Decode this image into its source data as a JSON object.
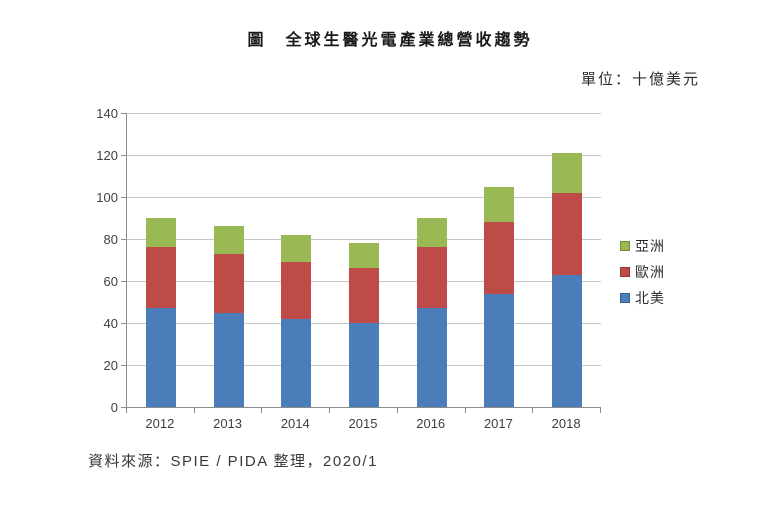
{
  "title": "圖　全球生醫光電產業總營收趨勢",
  "unit_label": "單位：十億美元",
  "source_note": "資料來源：SPIE / PIDA 整理，2020/1",
  "chart_data": {
    "type": "bar",
    "stacked": true,
    "title": "全球生醫光電產業總營收趨勢",
    "unit": "十億美元",
    "categories": [
      "2012",
      "2013",
      "2014",
      "2015",
      "2016",
      "2017",
      "2018"
    ],
    "series": [
      {
        "name": "北美",
        "color": "#4A7DBA",
        "values": [
          47,
          45,
          42,
          40,
          47,
          54,
          63
        ]
      },
      {
        "name": "歐洲",
        "color": "#BE4B48",
        "values": [
          29,
          28,
          27,
          26,
          29,
          34,
          39
        ]
      },
      {
        "name": "亞洲",
        "color": "#98B954",
        "values": [
          14,
          13,
          13,
          12,
          14,
          17,
          19
        ]
      }
    ],
    "stack_totals": [
      90,
      86,
      82,
      78,
      90,
      105,
      121
    ],
    "ylim": [
      0,
      140
    ],
    "yticks": [
      0,
      20,
      40,
      60,
      80,
      100,
      120,
      140
    ],
    "grid": true,
    "legend_position": "right",
    "legend_order_top_to_bottom": [
      "亞洲",
      "歐洲",
      "北美"
    ],
    "colors": {
      "axis": "#8c8c8c",
      "gridline": "#c6c6c6",
      "tick_label": "#3f3f3f"
    }
  }
}
